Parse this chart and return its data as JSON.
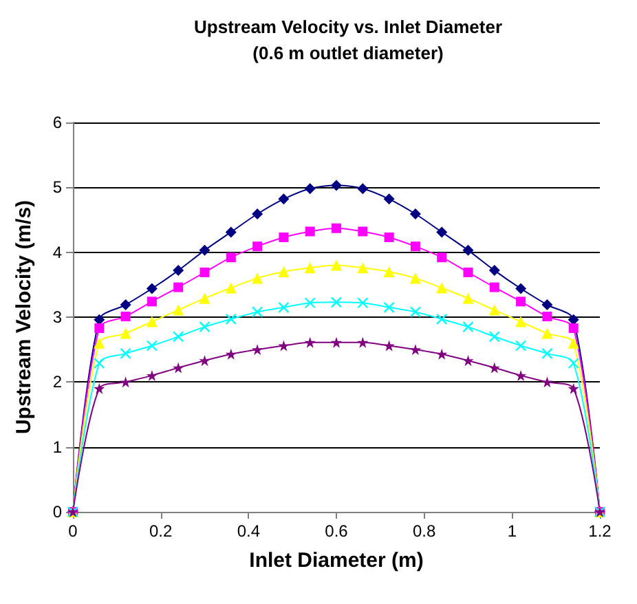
{
  "chart_data": {
    "type": "line",
    "title": "Upstream Velocity vs. Inlet Diameter",
    "subtitle": "(0.6 m outlet diameter)",
    "xlabel": "Inlet Diameter (m)",
    "ylabel": "Upstream Velocity (m/s)",
    "x": [
      0,
      0.06,
      0.12,
      0.18,
      0.24,
      0.3,
      0.36,
      0.42,
      0.48,
      0.54,
      0.6,
      0.66,
      0.72,
      0.78,
      0.84,
      0.9,
      0.96,
      1.02,
      1.08,
      1.14,
      1.2
    ],
    "series": [
      {
        "color": "#000080",
        "marker": "diamond",
        "values": [
          0,
          2.96,
          3.19,
          3.44,
          3.72,
          4.03,
          4.31,
          4.59,
          4.82,
          4.98,
          5.03,
          4.98,
          4.82,
          4.59,
          4.31,
          4.03,
          3.72,
          3.44,
          3.19,
          2.96,
          0
        ]
      },
      {
        "color": "#ff00ff",
        "marker": "square",
        "values": [
          0,
          2.83,
          3.01,
          3.24,
          3.46,
          3.69,
          3.92,
          4.09,
          4.23,
          4.32,
          4.37,
          4.32,
          4.23,
          4.09,
          3.92,
          3.69,
          3.46,
          3.24,
          3.01,
          2.83,
          0
        ]
      },
      {
        "color": "#ffff00",
        "marker": "triangle",
        "values": [
          0,
          2.6,
          2.75,
          2.93,
          3.11,
          3.29,
          3.45,
          3.6,
          3.7,
          3.76,
          3.8,
          3.76,
          3.7,
          3.6,
          3.45,
          3.29,
          3.11,
          2.93,
          2.75,
          2.6,
          0
        ]
      },
      {
        "color": "#00ffff",
        "marker": "cross",
        "values": [
          0,
          2.29,
          2.44,
          2.56,
          2.7,
          2.85,
          2.97,
          3.08,
          3.15,
          3.22,
          3.23,
          3.22,
          3.15,
          3.08,
          2.97,
          2.85,
          2.7,
          2.56,
          2.44,
          2.29,
          0
        ]
      },
      {
        "color": "#800080",
        "marker": "star",
        "values": [
          0,
          1.9,
          2.0,
          2.1,
          2.22,
          2.33,
          2.43,
          2.5,
          2.56,
          2.61,
          2.61,
          2.61,
          2.56,
          2.5,
          2.43,
          2.33,
          2.22,
          2.1,
          2.0,
          1.9,
          0
        ]
      }
    ],
    "xlim": [
      0,
      1.2
    ],
    "xticks": [
      0,
      0.2,
      0.4,
      0.6,
      0.8,
      1,
      1.2
    ],
    "ylim": [
      0,
      6
    ],
    "yticks": [
      0,
      1,
      2,
      3,
      4,
      5,
      6
    ],
    "grid": "y"
  }
}
